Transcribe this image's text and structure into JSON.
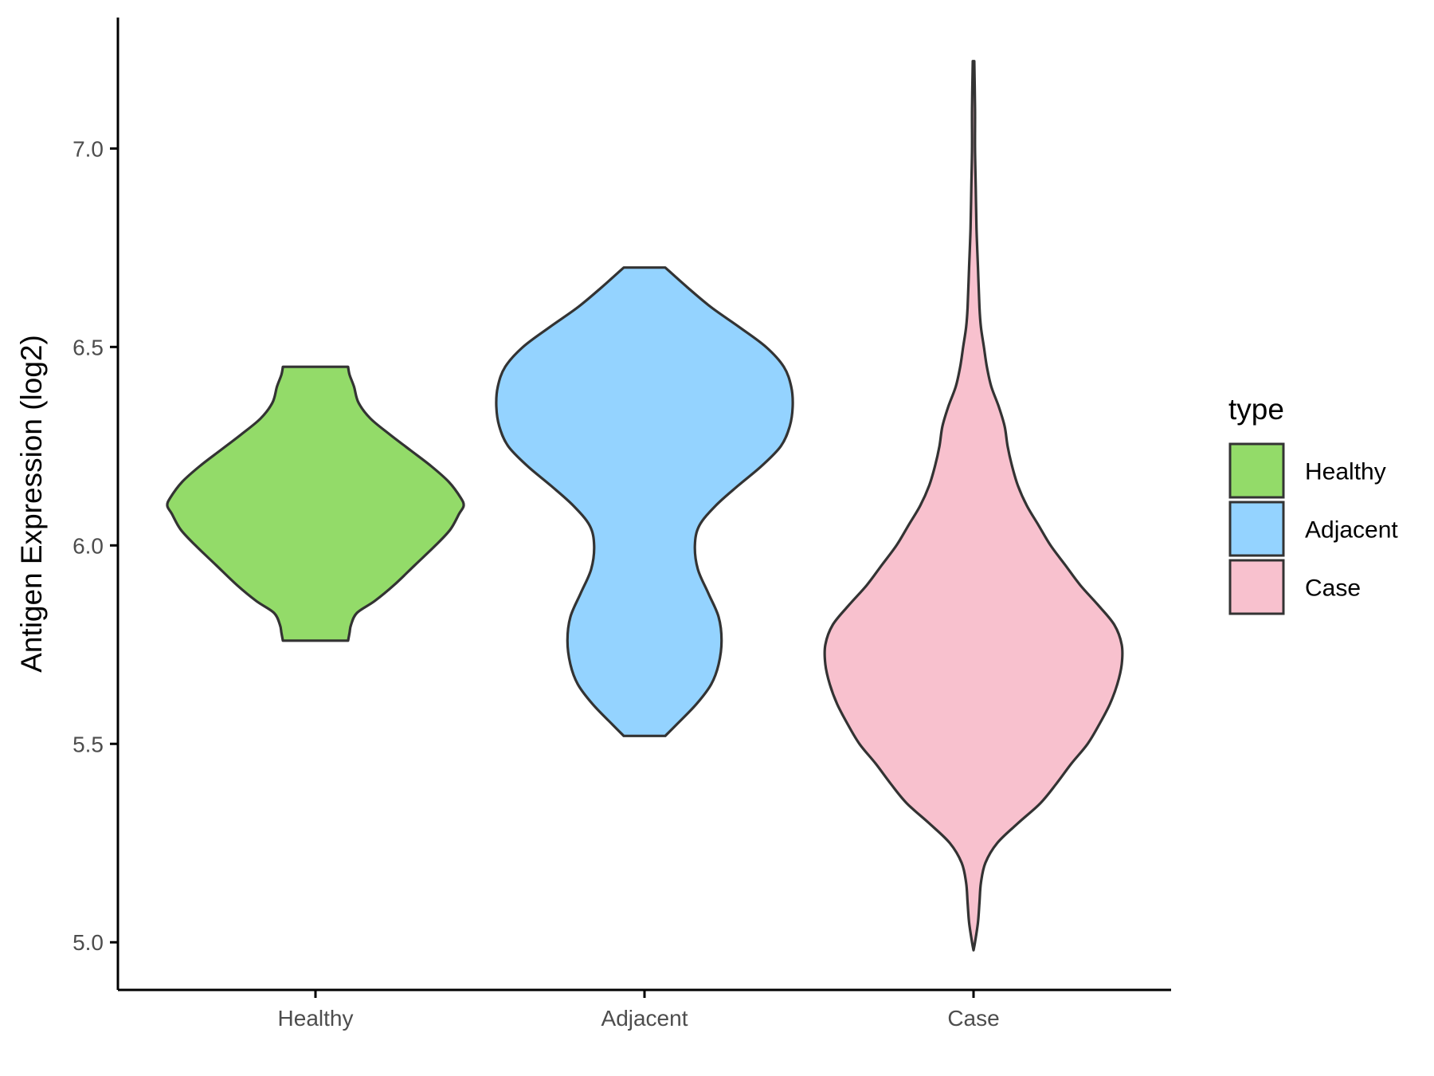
{
  "chart_data": {
    "type": "violin",
    "title": "",
    "xlabel": "",
    "ylabel": "Antigen Expression (log2)",
    "ylim": [
      4.88,
      7.33
    ],
    "yticks": [
      5.0,
      5.5,
      6.0,
      6.5,
      7.0
    ],
    "ytick_labels": [
      "5.0",
      "5.5",
      "6.0",
      "6.5",
      "7.0"
    ],
    "grid": false,
    "legend": {
      "title": "type",
      "placement": "right"
    },
    "categories": [
      "Healthy",
      "Adjacent",
      "Case"
    ],
    "series": [
      {
        "name": "Healthy",
        "color": "#93DB69",
        "min": 5.76,
        "max": 6.45,
        "profile": [
          [
            5.76,
            0.22
          ],
          [
            5.78,
            0.23
          ],
          [
            5.8,
            0.24
          ],
          [
            5.83,
            0.28
          ],
          [
            5.86,
            0.4
          ],
          [
            5.9,
            0.53
          ],
          [
            5.95,
            0.67
          ],
          [
            6.0,
            0.81
          ],
          [
            6.04,
            0.91
          ],
          [
            6.08,
            0.97
          ],
          [
            6.1,
            1.0
          ],
          [
            6.12,
            0.98
          ],
          [
            6.16,
            0.9
          ],
          [
            6.2,
            0.78
          ],
          [
            6.24,
            0.64
          ],
          [
            6.28,
            0.5
          ],
          [
            6.32,
            0.37
          ],
          [
            6.36,
            0.29
          ],
          [
            6.4,
            0.26
          ],
          [
            6.43,
            0.23
          ],
          [
            6.45,
            0.22
          ]
        ]
      },
      {
        "name": "Adjacent",
        "color": "#94D3FF",
        "min": 5.52,
        "max": 6.7,
        "profile": [
          [
            5.52,
            0.14
          ],
          [
            5.55,
            0.22
          ],
          [
            5.6,
            0.35
          ],
          [
            5.65,
            0.45
          ],
          [
            5.7,
            0.5
          ],
          [
            5.76,
            0.52
          ],
          [
            5.82,
            0.5
          ],
          [
            5.88,
            0.43
          ],
          [
            5.94,
            0.36
          ],
          [
            6.0,
            0.34
          ],
          [
            6.05,
            0.37
          ],
          [
            6.1,
            0.48
          ],
          [
            6.15,
            0.63
          ],
          [
            6.2,
            0.79
          ],
          [
            6.25,
            0.92
          ],
          [
            6.3,
            0.98
          ],
          [
            6.35,
            1.0
          ],
          [
            6.4,
            0.99
          ],
          [
            6.45,
            0.94
          ],
          [
            6.5,
            0.82
          ],
          [
            6.55,
            0.64
          ],
          [
            6.6,
            0.45
          ],
          [
            6.65,
            0.29
          ],
          [
            6.7,
            0.14
          ]
        ]
      },
      {
        "name": "Case",
        "color": "#F8C1CE",
        "min": 4.98,
        "max": 7.22,
        "profile": [
          [
            4.98,
            0.0
          ],
          [
            5.0,
            0.01
          ],
          [
            5.05,
            0.03
          ],
          [
            5.1,
            0.04
          ],
          [
            5.15,
            0.05
          ],
          [
            5.2,
            0.08
          ],
          [
            5.25,
            0.16
          ],
          [
            5.3,
            0.3
          ],
          [
            5.35,
            0.45
          ],
          [
            5.4,
            0.56
          ],
          [
            5.45,
            0.66
          ],
          [
            5.5,
            0.77
          ],
          [
            5.55,
            0.85
          ],
          [
            5.6,
            0.92
          ],
          [
            5.65,
            0.97
          ],
          [
            5.7,
            1.0
          ],
          [
            5.75,
            1.0
          ],
          [
            5.8,
            0.95
          ],
          [
            5.85,
            0.84
          ],
          [
            5.9,
            0.72
          ],
          [
            5.95,
            0.62
          ],
          [
            6.0,
            0.52
          ],
          [
            6.05,
            0.44
          ],
          [
            6.1,
            0.36
          ],
          [
            6.15,
            0.3
          ],
          [
            6.2,
            0.26
          ],
          [
            6.25,
            0.23
          ],
          [
            6.3,
            0.21
          ],
          [
            6.35,
            0.17
          ],
          [
            6.4,
            0.12
          ],
          [
            6.45,
            0.09
          ],
          [
            6.5,
            0.07
          ],
          [
            6.55,
            0.05
          ],
          [
            6.6,
            0.04
          ],
          [
            6.7,
            0.03
          ],
          [
            6.8,
            0.02
          ],
          [
            6.9,
            0.015
          ],
          [
            7.0,
            0.01
          ],
          [
            7.1,
            0.01
          ],
          [
            7.22,
            0.005
          ]
        ]
      }
    ]
  },
  "colors": {
    "outline": "#333333",
    "axis": "#000000",
    "background": "#FFFFFF"
  }
}
